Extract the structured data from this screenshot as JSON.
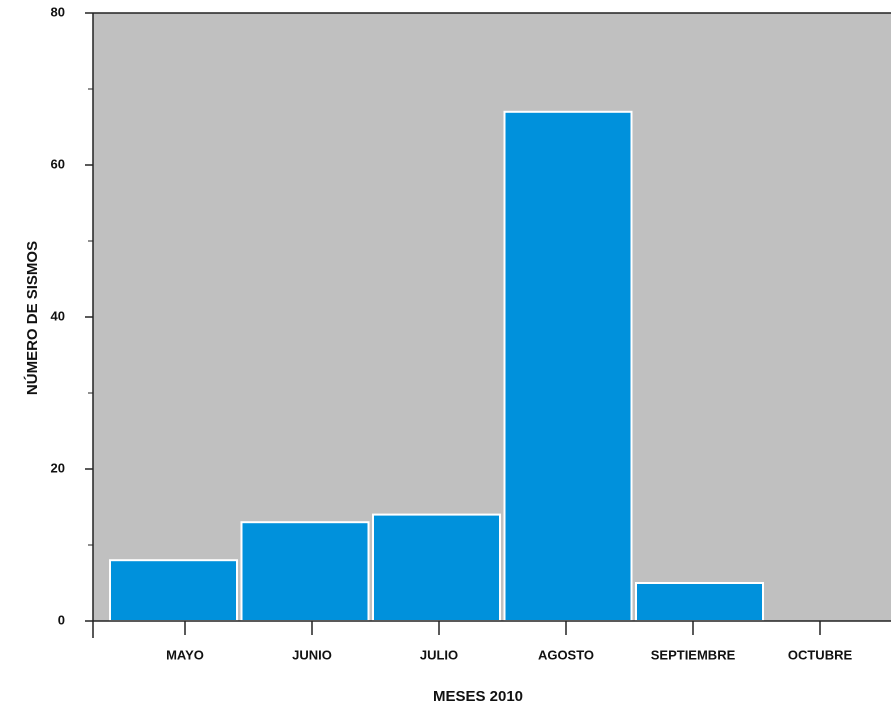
{
  "chart_data": {
    "type": "bar",
    "x_label": "MESES 2010",
    "y_label": "NÚMERO DE SISMOS",
    "categories": [
      "MAYO",
      "JUNIO",
      "JULIO",
      "AGOSTO",
      "SEPTIEMBRE",
      "OCTUBRE"
    ],
    "values": [
      8,
      13,
      14,
      67,
      5,
      0
    ],
    "color": "#0091dc",
    "background": "#c0c0c0",
    "ylim": [
      0,
      80
    ],
    "yticks": [
      0,
      20,
      40,
      60,
      80
    ],
    "yminorticks": [
      10,
      30,
      50,
      70
    ]
  }
}
